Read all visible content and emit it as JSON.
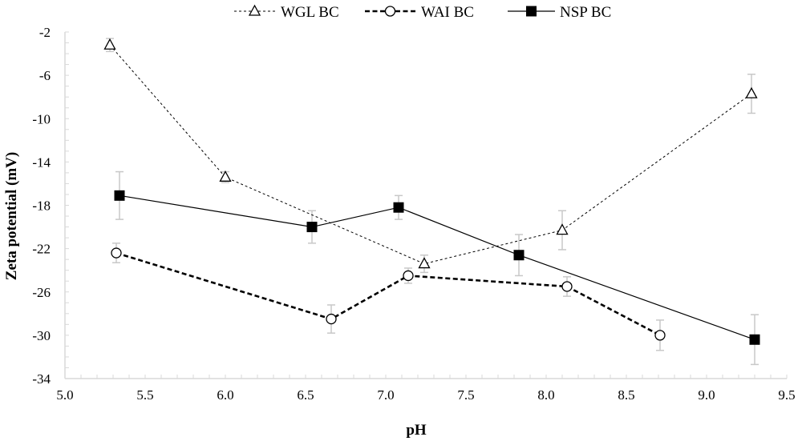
{
  "chart_data": {
    "type": "line",
    "title": "",
    "xlabel": "pH",
    "ylabel": "Zeta potential (mV)",
    "xlim": [
      5.0,
      9.5
    ],
    "ylim": [
      -34,
      -2
    ],
    "xticks": [
      "5.0",
      "5.5",
      "6.0",
      "6.5",
      "7.0",
      "7.5",
      "8.0",
      "8.5",
      "9.0",
      "9.5"
    ],
    "yticks": [
      "-2",
      "-6",
      "-10",
      "-14",
      "-18",
      "-22",
      "-26",
      "-30",
      "-34"
    ],
    "xtick_values": [
      5.0,
      5.5,
      6.0,
      6.5,
      7.0,
      7.5,
      8.0,
      8.5,
      9.0,
      9.5
    ],
    "ytick_values": [
      -2,
      -6,
      -10,
      -14,
      -18,
      -22,
      -26,
      -30,
      -34
    ],
    "x_minor_step": 0.1,
    "y_minor_step": 1,
    "grid": false,
    "legend_position": "top-center",
    "error_bar_color": "#c8c8c8",
    "series": [
      {
        "name": "WGL BC",
        "marker": "triangle-open",
        "line_style": "thin-dashed",
        "color": "#000000",
        "x": [
          5.28,
          6.0,
          7.24,
          8.1,
          9.28
        ],
        "y": [
          -3.2,
          -15.4,
          -23.4,
          -20.3,
          -7.7
        ],
        "error": [
          0.6,
          0.5,
          0.8,
          1.8,
          1.8
        ]
      },
      {
        "name": "WAI BC",
        "marker": "circle-open",
        "line_style": "thick-dashed",
        "color": "#000000",
        "x": [
          5.32,
          6.66,
          7.14,
          8.13,
          8.71
        ],
        "y": [
          -22.4,
          -28.5,
          -24.5,
          -25.5,
          -30.0
        ],
        "error": [
          0.9,
          1.3,
          0.7,
          0.9,
          1.4
        ]
      },
      {
        "name": "NSP BC",
        "marker": "square-filled",
        "line_style": "solid",
        "color": "#000000",
        "x": [
          5.34,
          6.54,
          7.08,
          7.83,
          9.3
        ],
        "y": [
          -17.1,
          -20.0,
          -18.2,
          -22.6,
          -30.4
        ],
        "error": [
          2.2,
          1.5,
          1.1,
          1.9,
          2.3
        ]
      }
    ]
  }
}
